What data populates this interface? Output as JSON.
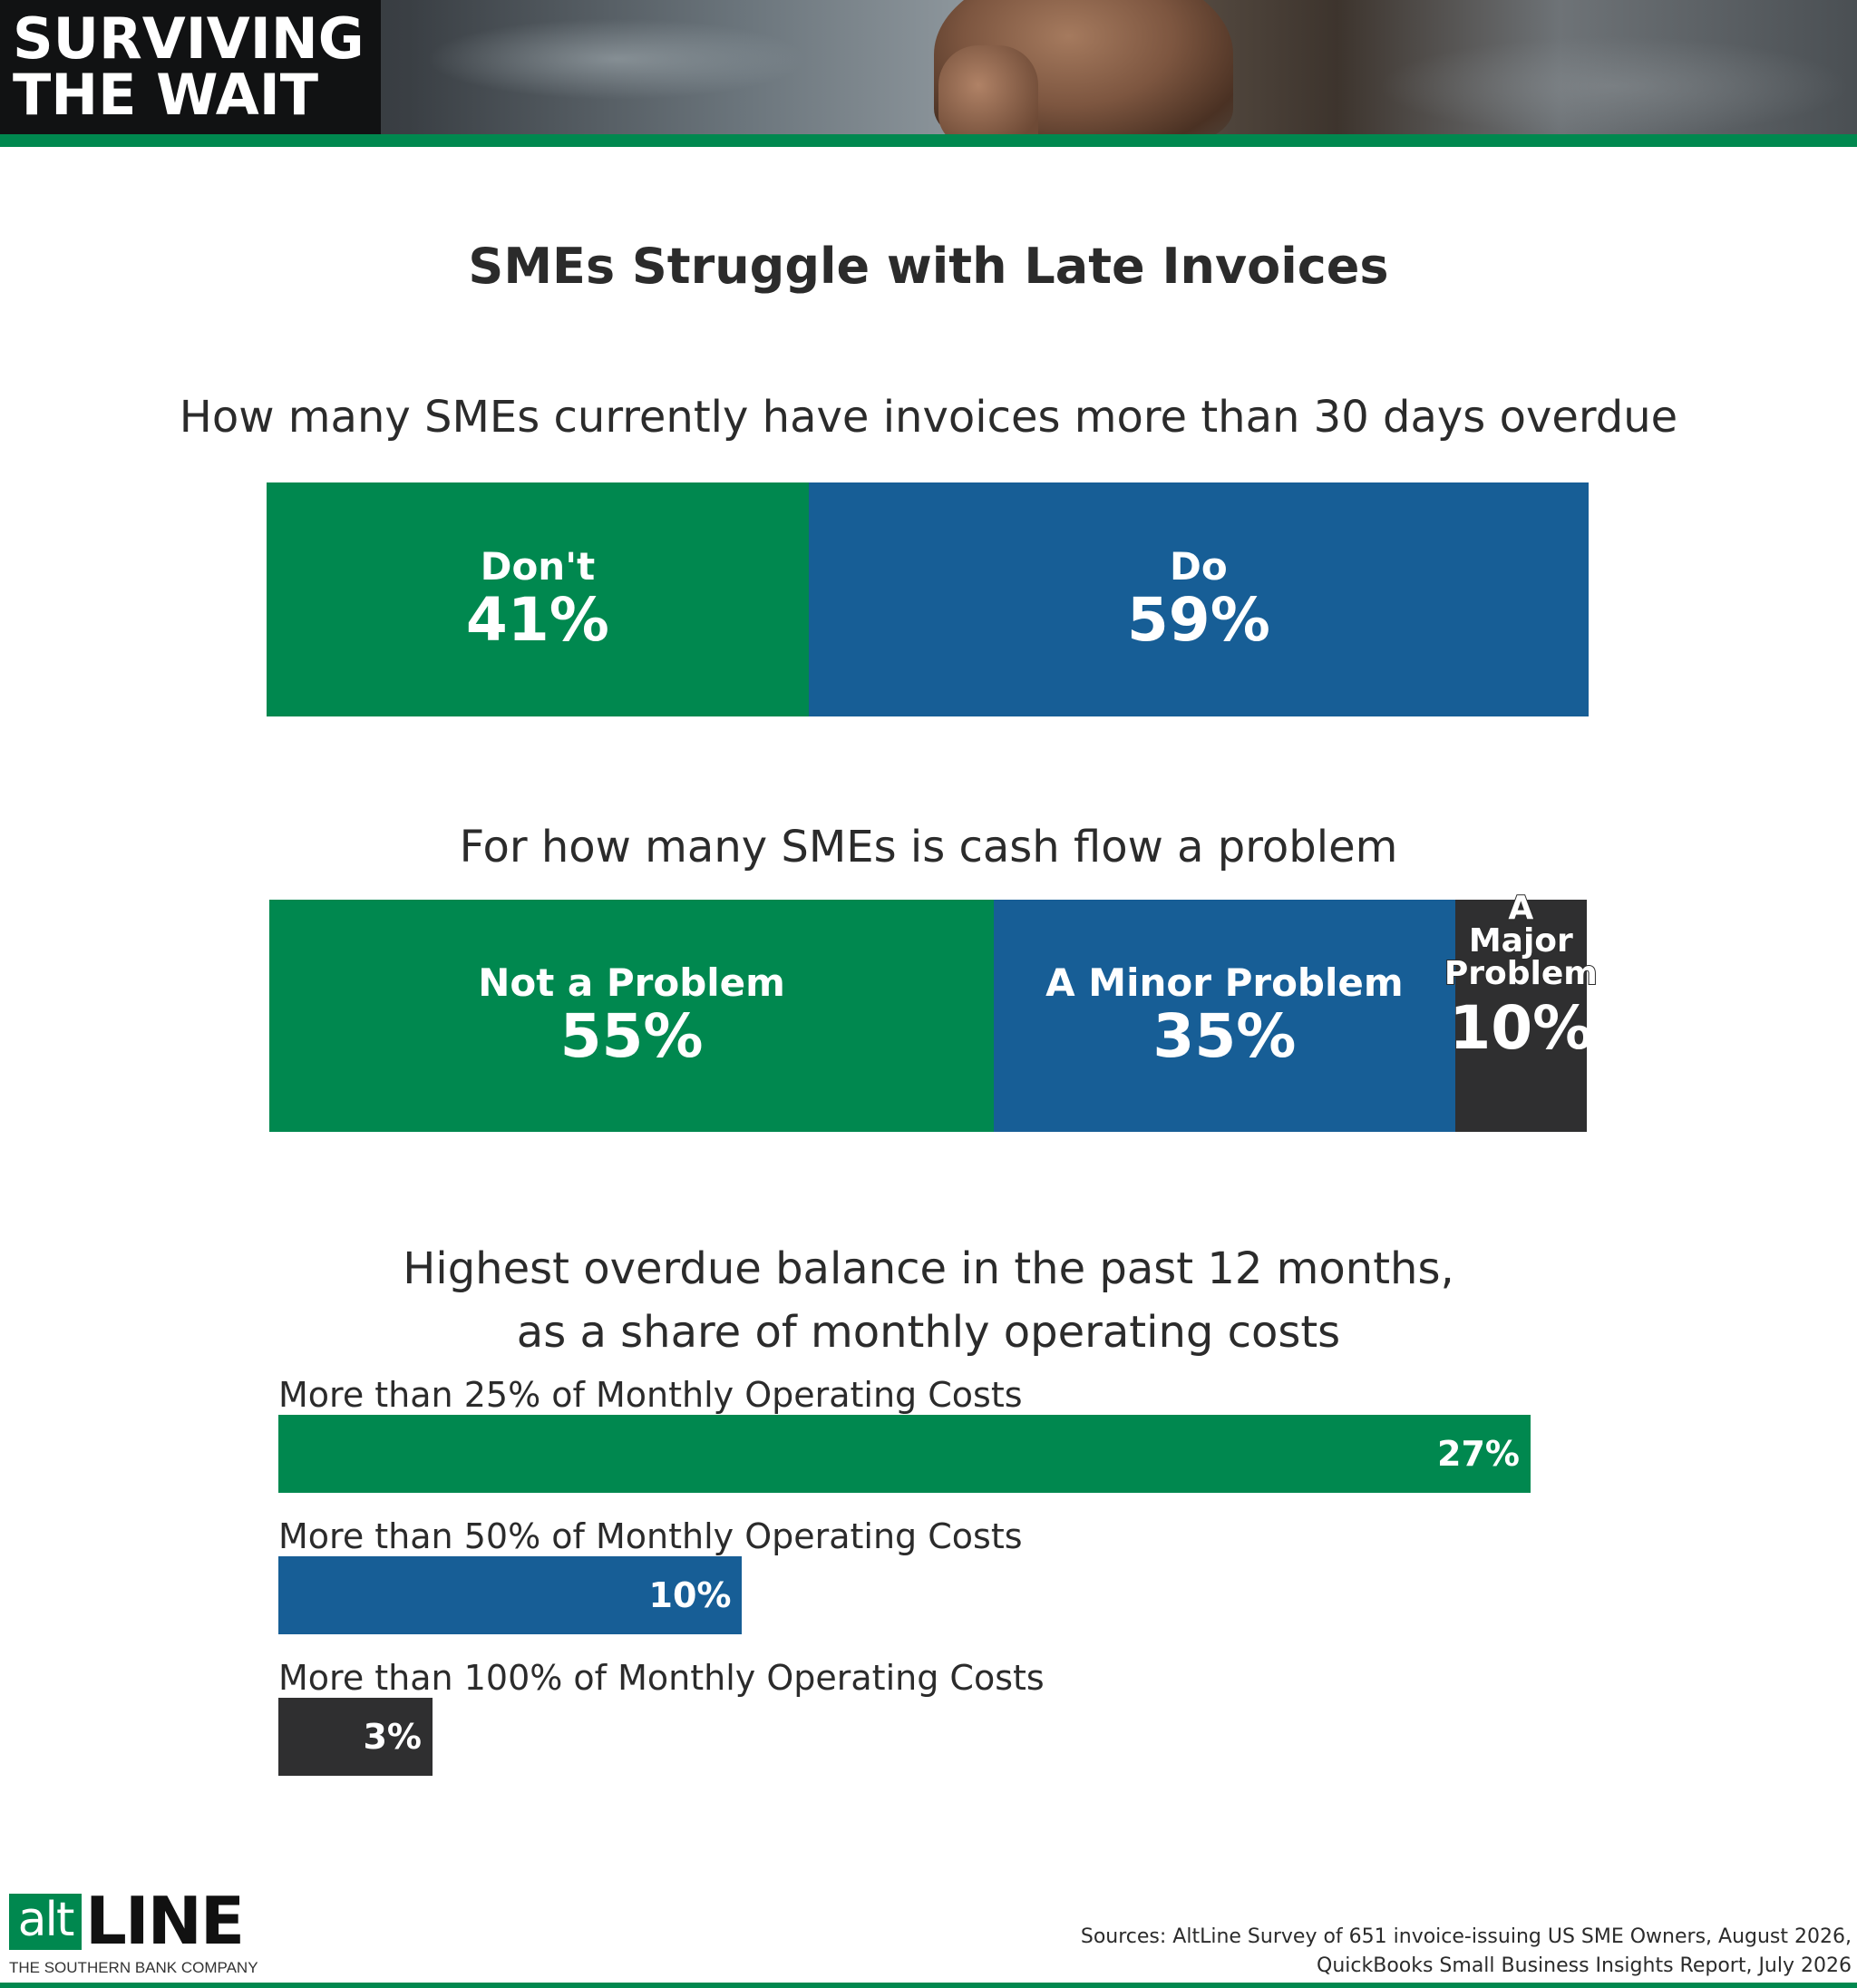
{
  "banner": {
    "title_line1": "SURVIVING",
    "title_line2": "THE WAIT"
  },
  "main_title": "SMEs Struggle with Late Invoices",
  "colors": {
    "green": "#00884f",
    "blue": "#175e96",
    "dark": "#2f2f30"
  },
  "chart_data": [
    {
      "type": "bar",
      "stacked": true,
      "orientation": "horizontal",
      "title": "How many SMEs currently have invoices more than 30 days overdue",
      "categories": [
        "Don't",
        "Do"
      ],
      "values": [
        41,
        59
      ],
      "value_labels": [
        "41%",
        "59%"
      ],
      "colors": [
        "#00884f",
        "#175e96"
      ]
    },
    {
      "type": "bar",
      "stacked": true,
      "orientation": "horizontal",
      "title": "For how many SMEs is cash flow a problem",
      "categories": [
        "Not a Problem",
        "A Minor Problem",
        "A Major Problem"
      ],
      "label_lines": [
        [
          "Not a Problem"
        ],
        [
          "A Minor Problem"
        ],
        [
          "A",
          "Major",
          "Problem"
        ]
      ],
      "values": [
        55,
        35,
        10
      ],
      "value_labels": [
        "55%",
        "35%",
        "10%"
      ],
      "colors": [
        "#00884f",
        "#175e96",
        "#2f2f30"
      ]
    },
    {
      "type": "bar",
      "orientation": "horizontal",
      "title_lines": [
        "Highest overdue balance in the past 12 months,",
        "as a share of monthly operating costs"
      ],
      "categories": [
        "More than 25% of Monthly Operating Costs",
        "More than 50% of Monthly Operating Costs",
        "More than 100% of Monthly Operating Costs"
      ],
      "values": [
        27,
        10,
        3
      ],
      "value_labels": [
        "27%",
        "10%",
        "3%"
      ],
      "colors": [
        "#00884f",
        "#175e96",
        "#2f2f30"
      ]
    }
  ],
  "logo": {
    "alt": "alt",
    "line": "LINE",
    "sub": "THE SOUTHERN BANK COMPANY"
  },
  "sources": {
    "line1": "Sources: AltLine Survey of 651 invoice-issuing US SME Owners, August 2026,",
    "line2": "QuickBooks Small Business Insights Report, July 2026"
  }
}
